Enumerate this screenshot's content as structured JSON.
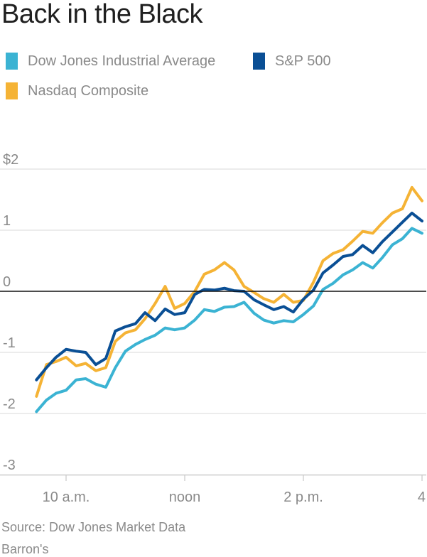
{
  "chart_data": {
    "type": "line",
    "title": "Back in the Black",
    "subtitle": "",
    "xlabel": "",
    "ylabel": "",
    "x_ticks": [
      "10 a.m.",
      "noon",
      "2 p.m.",
      "4"
    ],
    "x_tick_hours": [
      10,
      12,
      14,
      16
    ],
    "x_range_hours": [
      9.5,
      16
    ],
    "y_ticks": [
      {
        "value": 2,
        "label": "$2"
      },
      {
        "value": 1,
        "label": "1"
      },
      {
        "value": 0,
        "label": "0"
      },
      {
        "value": -1,
        "label": "-1"
      },
      {
        "value": -2,
        "label": "-2"
      },
      {
        "value": -3,
        "label": "-3"
      }
    ],
    "ylim": [
      -3.1,
      2.0
    ],
    "zero_line": true,
    "grid": true,
    "legend_placement": "top-left",
    "series": [
      {
        "name": "Dow Jones Industrial Average",
        "color": "#3bb3d3",
        "x": [
          9.5,
          9.67,
          9.83,
          10.0,
          10.17,
          10.33,
          10.5,
          10.67,
          10.83,
          11.0,
          11.17,
          11.33,
          11.5,
          11.67,
          11.83,
          12.0,
          12.17,
          12.33,
          12.5,
          12.67,
          12.83,
          13.0,
          13.17,
          13.33,
          13.5,
          13.67,
          13.83,
          14.0,
          14.17,
          14.33,
          14.5,
          14.67,
          14.83,
          15.0,
          15.17,
          15.33,
          15.5,
          15.67,
          15.83,
          16.0
        ],
        "values": [
          -1.97,
          -1.78,
          -1.67,
          -1.62,
          -1.45,
          -1.43,
          -1.52,
          -1.57,
          -1.25,
          -0.98,
          -0.87,
          -0.79,
          -0.72,
          -0.6,
          -0.63,
          -0.6,
          -0.47,
          -0.3,
          -0.33,
          -0.26,
          -0.25,
          -0.18,
          -0.36,
          -0.47,
          -0.52,
          -0.48,
          -0.5,
          -0.38,
          -0.24,
          0.03,
          0.13,
          0.27,
          0.35,
          0.47,
          0.38,
          0.55,
          0.76,
          0.86,
          1.03,
          0.95
        ]
      },
      {
        "name": "S&P 500",
        "color": "#0a4f95",
        "x": [
          9.5,
          9.67,
          9.83,
          10.0,
          10.17,
          10.33,
          10.5,
          10.67,
          10.83,
          11.0,
          11.17,
          11.33,
          11.5,
          11.67,
          11.83,
          12.0,
          12.17,
          12.33,
          12.5,
          12.67,
          12.83,
          13.0,
          13.17,
          13.33,
          13.5,
          13.67,
          13.83,
          14.0,
          14.17,
          14.33,
          14.5,
          14.67,
          14.83,
          15.0,
          15.17,
          15.33,
          15.5,
          15.67,
          15.83,
          16.0
        ],
        "values": [
          -1.45,
          -1.25,
          -1.08,
          -0.95,
          -0.98,
          -1.0,
          -1.2,
          -1.1,
          -0.65,
          -0.58,
          -0.53,
          -0.35,
          -0.48,
          -0.29,
          -0.38,
          -0.35,
          -0.05,
          0.03,
          0.02,
          0.05,
          0.01,
          0.0,
          -0.14,
          -0.22,
          -0.3,
          -0.25,
          -0.34,
          -0.13,
          0.02,
          0.3,
          0.43,
          0.57,
          0.6,
          0.75,
          0.63,
          0.81,
          0.97,
          1.13,
          1.28,
          1.15
        ]
      },
      {
        "name": "Nasdaq Composite",
        "color": "#f5b335",
        "x": [
          9.5,
          9.67,
          9.83,
          10.0,
          10.17,
          10.33,
          10.5,
          10.67,
          10.83,
          11.0,
          11.17,
          11.33,
          11.5,
          11.67,
          11.83,
          12.0,
          12.17,
          12.33,
          12.5,
          12.67,
          12.83,
          13.0,
          13.17,
          13.33,
          13.5,
          13.67,
          13.83,
          14.0,
          14.17,
          14.33,
          14.5,
          14.67,
          14.83,
          15.0,
          15.17,
          15.33,
          15.5,
          15.67,
          15.83,
          16.0
        ],
        "values": [
          -1.72,
          -1.2,
          -1.15,
          -1.08,
          -1.22,
          -1.18,
          -1.3,
          -1.25,
          -0.82,
          -0.68,
          -0.63,
          -0.45,
          -0.2,
          0.08,
          -0.28,
          -0.2,
          0.0,
          0.28,
          0.35,
          0.47,
          0.35,
          0.08,
          -0.02,
          -0.12,
          -0.18,
          -0.05,
          -0.18,
          -0.15,
          0.15,
          0.5,
          0.62,
          0.68,
          0.82,
          0.98,
          0.95,
          1.12,
          1.28,
          1.35,
          1.7,
          1.48
        ]
      }
    ]
  },
  "footer": {
    "source": "Source: Dow Jones Market Data",
    "credit": "Barron's"
  }
}
